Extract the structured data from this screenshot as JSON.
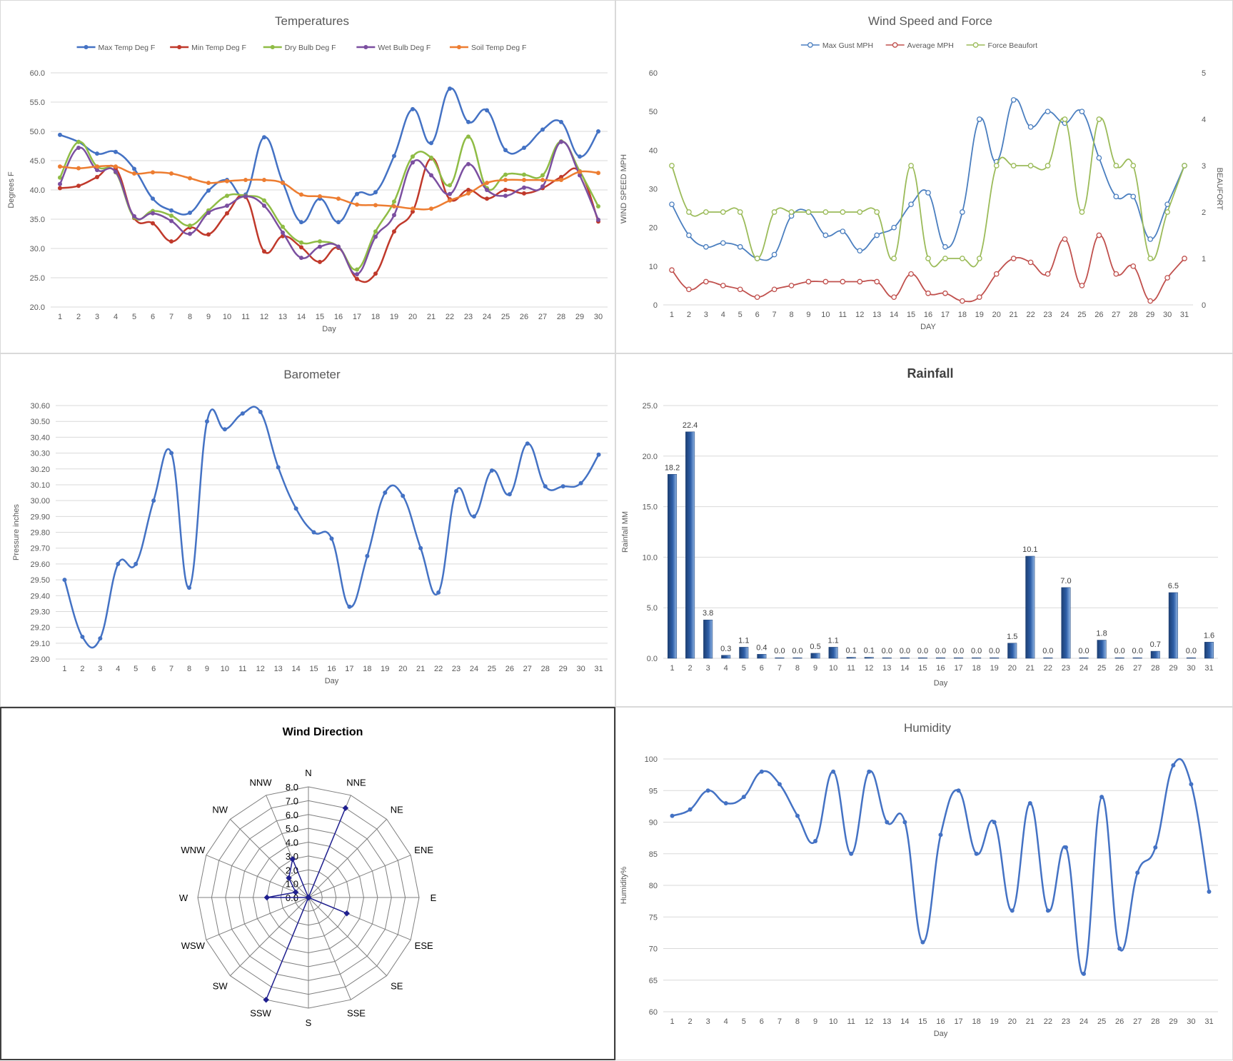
{
  "chart_data": [
    {
      "id": "temperatures",
      "type": "line",
      "title": "Temperatures",
      "xlabel": "Day",
      "ylabel": "Degrees F",
      "ylim": [
        20,
        60
      ],
      "ystep": 5,
      "ytick_decimals": 1,
      "legend": "top",
      "grid": true,
      "categories": [
        "1",
        "2",
        "3",
        "4",
        "5",
        "6",
        "7",
        "8",
        "9",
        "10",
        "11",
        "12",
        "13",
        "14",
        "15",
        "16",
        "17",
        "18",
        "19",
        "20",
        "21",
        "22",
        "23",
        "24",
        "25",
        "26",
        "27",
        "28",
        "29",
        "30"
      ],
      "series": [
        {
          "name": "Max Temp Deg F",
          "color": "#4472c4",
          "values": [
            49.4,
            48.2,
            46.2,
            46.5,
            43.6,
            38.5,
            36.5,
            36.1,
            39.9,
            41.7,
            39.2,
            49.0,
            41.3,
            34.5,
            38.5,
            34.5,
            39.3,
            39.6,
            45.8,
            53.8,
            48.0,
            57.3,
            51.6,
            53.6,
            46.8,
            47.2,
            50.3,
            51.6,
            45.7,
            50.0
          ]
        },
        {
          "name": "Min Temp Deg F",
          "color": "#c0392b",
          "values": [
            40.3,
            40.7,
            42.2,
            43.7,
            35.2,
            34.3,
            31.2,
            33.6,
            32.4,
            36.0,
            38.8,
            29.5,
            32.1,
            30.2,
            27.7,
            30.1,
            24.8,
            25.7,
            32.9,
            36.3,
            45.4,
            38.4,
            40.0,
            38.5,
            40.0,
            39.4,
            40.3,
            42.2,
            43.1,
            34.6
          ]
        },
        {
          "name": "Dry Bulb Deg F",
          "color": "#8fbc45",
          "values": [
            42.1,
            48.2,
            44.0,
            43.0,
            35.3,
            36.4,
            35.6,
            33.9,
            36.5,
            39.0,
            39.0,
            38.2,
            33.7,
            31.0,
            31.2,
            30.3,
            26.4,
            32.9,
            38.0,
            45.7,
            45.5,
            40.8,
            49.1,
            40.3,
            42.6,
            42.6,
            42.5,
            48.3,
            43.2,
            37.2
          ]
        },
        {
          "name": "Wet Bulb Deg F",
          "color": "#7b4fa0",
          "values": [
            41.0,
            47.2,
            43.4,
            43.1,
            35.5,
            36.0,
            34.7,
            32.5,
            36.1,
            37.3,
            38.9,
            37.3,
            32.7,
            28.4,
            30.3,
            30.3,
            25.6,
            32.0,
            35.7,
            44.7,
            42.5,
            39.3,
            44.4,
            40.0,
            39.0,
            40.4,
            40.6,
            48.2,
            42.5,
            34.9
          ]
        },
        {
          "name": "Soil Temp Deg F",
          "color": "#ed7d31",
          "values": [
            44.0,
            43.7,
            44.0,
            44.0,
            42.8,
            43.0,
            42.8,
            42.0,
            41.2,
            41.5,
            41.7,
            41.7,
            41.2,
            39.2,
            38.9,
            38.5,
            37.5,
            37.4,
            37.2,
            36.8,
            36.8,
            38.2,
            39.4,
            41.2,
            41.7,
            41.7,
            41.7,
            41.7,
            43.1,
            42.9
          ]
        }
      ]
    },
    {
      "id": "wind",
      "type": "line",
      "title": "Wind Speed and Force",
      "xlabel": "DAY",
      "ylabel": "WIND SPEED MPH",
      "y2label": "BEAUFORT",
      "ylim": [
        0,
        60
      ],
      "ystep": 10,
      "y2lim": [
        0,
        5
      ],
      "y2step": 1,
      "legend": "top",
      "grid": false,
      "categories": [
        "1",
        "2",
        "3",
        "4",
        "5",
        "6",
        "7",
        "8",
        "9",
        "10",
        "11",
        "12",
        "13",
        "14",
        "15",
        "16",
        "17",
        "18",
        "19",
        "20",
        "21",
        "22",
        "23",
        "24",
        "25",
        "26",
        "27",
        "28",
        "29",
        "30",
        "31"
      ],
      "series": [
        {
          "name": "Max Gust MPH",
          "color": "#4a7ebf",
          "axis": "left",
          "values": [
            26,
            18,
            15,
            16,
            15,
            12,
            13,
            23,
            24,
            18,
            19,
            14,
            18,
            20,
            26,
            29,
            15,
            24,
            48,
            37,
            53,
            46,
            50,
            47,
            50,
            38,
            28,
            28,
            17,
            26,
            36
          ]
        },
        {
          "name": "Average MPH",
          "color": "#c0504d",
          "axis": "left",
          "values": [
            9,
            4,
            6,
            5,
            4,
            2,
            4,
            5,
            6,
            6,
            6,
            6,
            6,
            2,
            8,
            3,
            3,
            1,
            2,
            8,
            12,
            11,
            8,
            17,
            5,
            18,
            8,
            10,
            1,
            7,
            12
          ]
        },
        {
          "name": "Force Beaufort",
          "color": "#9bbb59",
          "axis": "right",
          "values": [
            3,
            2,
            2,
            2,
            2,
            1,
            2,
            2,
            2,
            2,
            2,
            2,
            2,
            1,
            3,
            1,
            1,
            1,
            1,
            3,
            3,
            3,
            3,
            4,
            2,
            4,
            3,
            3,
            1,
            2,
            3
          ]
        }
      ]
    },
    {
      "id": "barometer",
      "type": "line",
      "title": "Barometer",
      "xlabel": "Day",
      "ylabel": "Pressure inches",
      "ylim": [
        29.0,
        30.6
      ],
      "ystep": 0.1,
      "ytick_decimals": 2,
      "grid": true,
      "categories": [
        "1",
        "2",
        "3",
        "4",
        "5",
        "6",
        "7",
        "8",
        "9",
        "10",
        "11",
        "12",
        "13",
        "14",
        "15",
        "16",
        "17",
        "18",
        "19",
        "20",
        "21",
        "22",
        "23",
        "24",
        "25",
        "26",
        "27",
        "28",
        "29",
        "30",
        "31"
      ],
      "series": [
        {
          "name": "",
          "color": "#4472c4",
          "values": [
            29.5,
            29.14,
            29.13,
            29.6,
            29.6,
            30.0,
            30.3,
            29.45,
            30.5,
            30.45,
            30.55,
            30.56,
            30.21,
            29.95,
            29.8,
            29.76,
            29.33,
            29.65,
            30.05,
            30.03,
            29.7,
            29.42,
            30.06,
            29.9,
            30.19,
            30.04,
            30.36,
            30.09,
            30.09,
            30.11,
            30.29
          ]
        }
      ]
    },
    {
      "id": "rainfall",
      "type": "bar",
      "title": "Rainfall",
      "xlabel": "Day",
      "ylabel": "Rainfall MM",
      "ylim": [
        0,
        25
      ],
      "ystep": 5,
      "ytick_decimals": 1,
      "grid": true,
      "color": "#2e5fa8",
      "categories": [
        "1",
        "2",
        "3",
        "4",
        "5",
        "6",
        "7",
        "8",
        "9",
        "10",
        "11",
        "12",
        "13",
        "14",
        "15",
        "16",
        "17",
        "18",
        "19",
        "20",
        "21",
        "22",
        "23",
        "24",
        "25",
        "26",
        "27",
        "28",
        "29",
        "30",
        "31"
      ],
      "values": [
        18.2,
        22.4,
        3.8,
        0.3,
        1.1,
        0.4,
        0.0,
        0.0,
        0.5,
        1.1,
        0.1,
        0.1,
        0.0,
        0.0,
        0.0,
        0.0,
        0.0,
        0.0,
        0.0,
        1.5,
        10.1,
        0.0,
        7.0,
        0.0,
        1.8,
        0.0,
        0.0,
        0.7,
        6.5,
        0.0,
        1.6
      ],
      "data_labels": [
        "18.2",
        "22.4",
        "3.8",
        "0.3",
        "1.1",
        "0.4",
        "0.0",
        "0.0",
        "0.5",
        "1.1",
        "0.1",
        "0.1",
        "0.0",
        "0.0",
        "0.0",
        "0.0",
        "0.0",
        "0.0",
        "0.0",
        "1.5",
        "10.1",
        "0.0",
        "7.0",
        "0.0",
        "1.8",
        "0.0",
        "0.0",
        "0.7",
        "6.5",
        "0.0",
        "1.6"
      ]
    },
    {
      "id": "wind_direction",
      "type": "radar",
      "title": "Wind Direction",
      "rlim": [
        0,
        8
      ],
      "rstep": 1,
      "tick_labels": [
        "0.0",
        "1.0",
        "2.0",
        "3.0",
        "4.0",
        "5.0",
        "6.0",
        "7.0",
        "8.0"
      ],
      "color": "#1f1f8f",
      "categories": [
        "N",
        "NNE",
        "NE",
        "ENE",
        "E",
        "ESE",
        "SE",
        "SSE",
        "S",
        "SSW",
        "SW",
        "WSW",
        "W",
        "WNW",
        "NW",
        "NNW"
      ],
      "values": [
        0,
        7,
        0,
        0,
        0,
        3,
        0,
        0,
        0,
        8,
        0,
        0,
        3,
        1,
        2,
        3
      ]
    },
    {
      "id": "humidity",
      "type": "line",
      "title": "Humidity",
      "xlabel": "Day",
      "ylabel": "Humidity%",
      "ylim": [
        60,
        100
      ],
      "ystep": 5,
      "ytick_decimals": 0,
      "grid": true,
      "categories": [
        "1",
        "2",
        "3",
        "4",
        "5",
        "6",
        "7",
        "8",
        "9",
        "10",
        "11",
        "12",
        "13",
        "14",
        "15",
        "16",
        "17",
        "18",
        "19",
        "20",
        "21",
        "22",
        "23",
        "24",
        "25",
        "26",
        "27",
        "28",
        "29",
        "30",
        "31"
      ],
      "series": [
        {
          "name": "",
          "color": "#4472c4",
          "values": [
            91,
            92,
            95,
            93,
            94,
            98,
            96,
            91,
            87,
            98,
            85,
            98,
            90,
            90,
            71,
            88,
            95,
            85,
            90,
            76,
            93,
            76,
            86,
            66,
            94,
            70,
            82,
            86,
            99,
            96,
            79
          ]
        }
      ]
    }
  ]
}
